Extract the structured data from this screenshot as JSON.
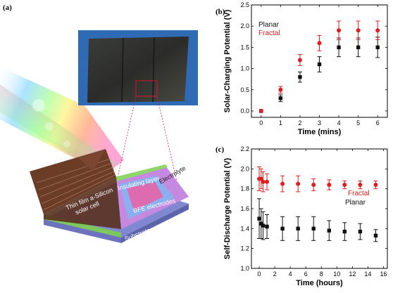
{
  "figure_a": {
    "panel_label": "(a)",
    "labels": {
      "cell": "Thin film a-Silicon\nsolar cell",
      "insulating": "Insulating layer",
      "electrolyte": "Electrolyte",
      "electrodes": "BFE electrodes",
      "substrate": "Substrate"
    },
    "colors": {
      "silicon": "#6b3c26",
      "stripe": "#a9735a",
      "insulating_layer": "#8fd66a",
      "electrolyte": "#c58adf",
      "electrodes": "#8cb0ef",
      "pink_zone": "#f05aa0",
      "substrate": "#8088d2"
    }
  },
  "chart_data": [
    {
      "type": "scatter",
      "panel_label": "(b)",
      "title": "",
      "xlabel": "Time (mins)",
      "ylabel": "Solar-Charging Potential (V)",
      "xlim": [
        -0.5,
        6.5
      ],
      "ylim": [
        -0.15,
        2.5
      ],
      "xticks": [
        0,
        1,
        2,
        3,
        4,
        5,
        6
      ],
      "yticks": [
        0.0,
        0.5,
        1.0,
        1.5,
        2.0,
        2.5
      ],
      "ytick_labels": [
        "0.0",
        "0.5",
        "1.0",
        "1.5",
        "2.0",
        "2.5"
      ],
      "legend_position": "top-left",
      "series": [
        {
          "name": "Planar",
          "color": "#111111",
          "marker": "square",
          "x": [
            0,
            1,
            2,
            3,
            4,
            5,
            6
          ],
          "y": [
            0.0,
            0.3,
            0.8,
            1.1,
            1.5,
            1.5,
            1.5
          ],
          "err": [
            0.0,
            0.08,
            0.12,
            0.18,
            0.22,
            0.22,
            0.24
          ]
        },
        {
          "name": "Fractal",
          "color": "#dd1f1f",
          "marker": "circle",
          "x": [
            0,
            1,
            2,
            3,
            4,
            5,
            6
          ],
          "y": [
            0.0,
            0.5,
            1.2,
            1.6,
            1.9,
            1.9,
            1.9
          ],
          "err": [
            0.0,
            0.08,
            0.13,
            0.18,
            0.22,
            0.22,
            0.22
          ]
        }
      ]
    },
    {
      "type": "scatter",
      "panel_label": "(c)",
      "title": "",
      "xlabel": "Time (hours)",
      "ylabel": "Self-Discharge Potential (V)",
      "xlim": [
        -1,
        16.5
      ],
      "ylim": [
        1.0,
        2.2
      ],
      "xticks": [
        0,
        2,
        4,
        6,
        8,
        10,
        12,
        14,
        16
      ],
      "yticks": [
        1.0,
        1.2,
        1.4,
        1.6,
        1.8,
        2.0,
        2.2
      ],
      "ytick_labels": [
        "1.0",
        "1.2",
        "1.4",
        "1.6",
        "1.8",
        "2.0",
        "2.2"
      ],
      "legend_position": "right",
      "series": [
        {
          "name": "Fractal",
          "color": "#dd1f1f",
          "marker": "circle",
          "x": [
            0,
            0.25,
            0.5,
            1,
            3,
            5,
            7,
            9,
            11,
            13,
            15
          ],
          "y": [
            1.9,
            1.9,
            1.87,
            1.87,
            1.85,
            1.85,
            1.84,
            1.84,
            1.84,
            1.84,
            1.84
          ],
          "err": [
            0.12,
            0.1,
            0.1,
            0.08,
            0.08,
            0.08,
            0.06,
            0.05,
            0.04,
            0.04,
            0.04
          ]
        },
        {
          "name": "Planar",
          "color": "#111111",
          "marker": "square",
          "x": [
            0,
            0.25,
            0.5,
            1,
            3,
            5,
            7,
            9,
            11,
            13,
            15
          ],
          "y": [
            1.5,
            1.45,
            1.43,
            1.42,
            1.4,
            1.4,
            1.4,
            1.38,
            1.37,
            1.37,
            1.33
          ],
          "err": [
            0.2,
            0.15,
            0.14,
            0.12,
            0.12,
            0.12,
            0.12,
            0.1,
            0.09,
            0.08,
            0.06
          ]
        }
      ]
    }
  ]
}
